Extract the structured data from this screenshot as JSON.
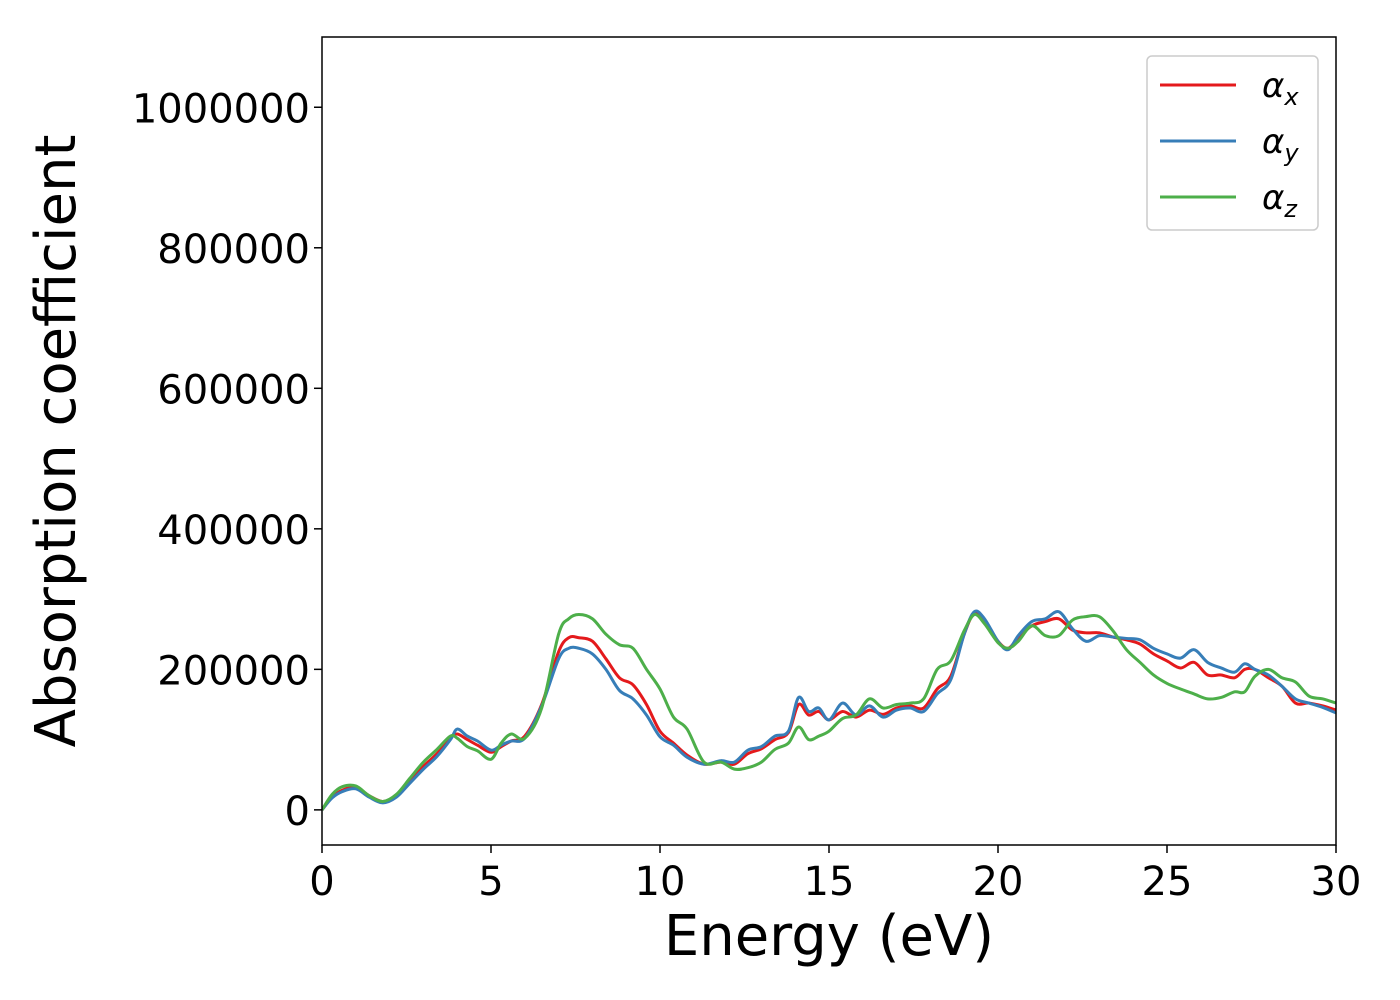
{
  "chart_data": {
    "type": "line",
    "title": "",
    "xlabel": "Energy (eV)",
    "ylabel": "Absorption coefficient",
    "xlim": [
      0,
      30
    ],
    "ylim": [
      -50000,
      1100000
    ],
    "xticks": [
      0,
      5,
      10,
      15,
      20,
      25,
      30
    ],
    "xtick_labels": [
      "0",
      "5",
      "10",
      "15",
      "20",
      "25",
      "30"
    ],
    "yticks": [
      0,
      200000,
      400000,
      600000,
      800000,
      1000000
    ],
    "ytick_labels": [
      "0",
      "200000",
      "400000",
      "600000",
      "800000",
      "1000000"
    ],
    "grid": false,
    "legend_position": "top-right",
    "series": [
      {
        "name": "α",
        "name_sub": "x",
        "color": "#e41a1c",
        "x": [
          0,
          0.3,
          0.6,
          1.0,
          1.4,
          1.8,
          2.2,
          2.6,
          3.0,
          3.4,
          3.8,
          4.0,
          4.3,
          4.6,
          5.0,
          5.3,
          5.6,
          6.0,
          6.5,
          7.0,
          7.3,
          7.6,
          8.0,
          8.4,
          8.8,
          9.2,
          9.6,
          10.0,
          10.4,
          10.8,
          11.3,
          11.8,
          12.2,
          12.6,
          13.0,
          13.4,
          13.8,
          14.1,
          14.4,
          14.7,
          15.0,
          15.4,
          15.8,
          16.2,
          16.6,
          17.0,
          17.4,
          17.8,
          18.2,
          18.6,
          19.0,
          19.3,
          19.6,
          20.0,
          20.3,
          20.6,
          21.0,
          21.4,
          21.8,
          22.2,
          22.6,
          23.0,
          23.4,
          23.8,
          24.2,
          24.6,
          25.0,
          25.4,
          25.8,
          26.2,
          26.6,
          27.0,
          27.3,
          27.6,
          28.0,
          28.4,
          28.8,
          29.2,
          29.6,
          30.0
        ],
        "values": [
          0,
          18000,
          28000,
          32000,
          20000,
          12000,
          20000,
          42000,
          62000,
          80000,
          102000,
          108000,
          100000,
          92000,
          82000,
          90000,
          98000,
          105000,
          150000,
          225000,
          245000,
          245000,
          240000,
          215000,
          188000,
          178000,
          150000,
          112000,
          95000,
          78000,
          65000,
          68000,
          65000,
          80000,
          87000,
          100000,
          110000,
          150000,
          135000,
          140000,
          128000,
          140000,
          132000,
          142000,
          136000,
          145000,
          148000,
          145000,
          172000,
          190000,
          250000,
          280000,
          270000,
          240000,
          230000,
          245000,
          262000,
          268000,
          272000,
          256000,
          252000,
          252000,
          246000,
          242000,
          236000,
          222000,
          212000,
          202000,
          210000,
          192000,
          192000,
          188000,
          200000,
          200000,
          188000,
          176000,
          152000,
          152000,
          148000,
          142000
        ]
      },
      {
        "name": "α",
        "name_sub": "y",
        "color": "#377eb8",
        "x": [
          0,
          0.3,
          0.6,
          1.0,
          1.4,
          1.8,
          2.2,
          2.6,
          3.0,
          3.4,
          3.8,
          4.0,
          4.3,
          4.6,
          5.0,
          5.3,
          5.6,
          6.0,
          6.5,
          7.0,
          7.3,
          7.6,
          8.0,
          8.4,
          8.8,
          9.2,
          9.6,
          10.0,
          10.4,
          10.8,
          11.3,
          11.8,
          12.2,
          12.6,
          13.0,
          13.4,
          13.8,
          14.1,
          14.4,
          14.7,
          15.0,
          15.4,
          15.8,
          16.2,
          16.6,
          17.0,
          17.4,
          17.8,
          18.2,
          18.6,
          19.0,
          19.3,
          19.6,
          20.0,
          20.3,
          20.6,
          21.0,
          21.4,
          21.8,
          22.2,
          22.6,
          23.0,
          23.4,
          23.8,
          24.2,
          24.6,
          25.0,
          25.4,
          25.8,
          26.2,
          26.6,
          27.0,
          27.3,
          27.6,
          28.0,
          28.4,
          28.8,
          29.2,
          29.6,
          30.0
        ],
        "values": [
          0,
          17000,
          26000,
          30000,
          18000,
          10000,
          18000,
          38000,
          58000,
          76000,
          100000,
          115000,
          105000,
          98000,
          85000,
          92000,
          98000,
          102000,
          148000,
          215000,
          230000,
          230000,
          222000,
          200000,
          170000,
          158000,
          135000,
          104000,
          92000,
          75000,
          65000,
          70000,
          68000,
          85000,
          90000,
          105000,
          112000,
          160000,
          140000,
          145000,
          128000,
          152000,
          135000,
          148000,
          132000,
          142000,
          145000,
          140000,
          165000,
          185000,
          250000,
          282000,
          272000,
          240000,
          228000,
          248000,
          268000,
          272000,
          282000,
          258000,
          240000,
          248000,
          246000,
          244000,
          242000,
          230000,
          222000,
          216000,
          228000,
          210000,
          202000,
          196000,
          208000,
          200000,
          192000,
          176000,
          158000,
          152000,
          146000,
          138000
        ]
      },
      {
        "name": "α",
        "name_sub": "z",
        "color": "#4daf4a",
        "x": [
          0,
          0.3,
          0.6,
          1.0,
          1.4,
          1.8,
          2.2,
          2.6,
          3.0,
          3.4,
          3.8,
          4.0,
          4.3,
          4.6,
          5.0,
          5.3,
          5.6,
          6.0,
          6.5,
          7.0,
          7.3,
          7.6,
          8.0,
          8.4,
          8.8,
          9.2,
          9.6,
          10.0,
          10.4,
          10.8,
          11.3,
          11.8,
          12.2,
          12.6,
          13.0,
          13.4,
          13.8,
          14.1,
          14.4,
          14.7,
          15.0,
          15.4,
          15.8,
          16.2,
          16.6,
          17.0,
          17.4,
          17.8,
          18.2,
          18.6,
          19.0,
          19.3,
          19.6,
          20.0,
          20.3,
          20.6,
          21.0,
          21.4,
          21.8,
          22.2,
          22.6,
          23.0,
          23.4,
          23.8,
          24.2,
          24.6,
          25.0,
          25.4,
          25.8,
          26.2,
          26.6,
          27.0,
          27.3,
          27.6,
          28.0,
          28.4,
          28.8,
          29.2,
          29.6,
          30.0
        ],
        "values": [
          0,
          22000,
          33000,
          34000,
          20000,
          12000,
          22000,
          45000,
          68000,
          86000,
          105000,
          102000,
          90000,
          84000,
          72000,
          95000,
          108000,
          102000,
          145000,
          250000,
          272000,
          278000,
          272000,
          250000,
          235000,
          230000,
          200000,
          172000,
          132000,
          115000,
          68000,
          68000,
          58000,
          60000,
          68000,
          86000,
          95000,
          118000,
          100000,
          105000,
          112000,
          130000,
          135000,
          158000,
          145000,
          150000,
          152000,
          158000,
          200000,
          212000,
          255000,
          278000,
          265000,
          238000,
          230000,
          240000,
          262000,
          248000,
          248000,
          270000,
          275000,
          275000,
          255000,
          228000,
          210000,
          192000,
          180000,
          172000,
          165000,
          158000,
          160000,
          168000,
          168000,
          190000,
          200000,
          188000,
          182000,
          162000,
          158000,
          152000
        ]
      }
    ]
  }
}
